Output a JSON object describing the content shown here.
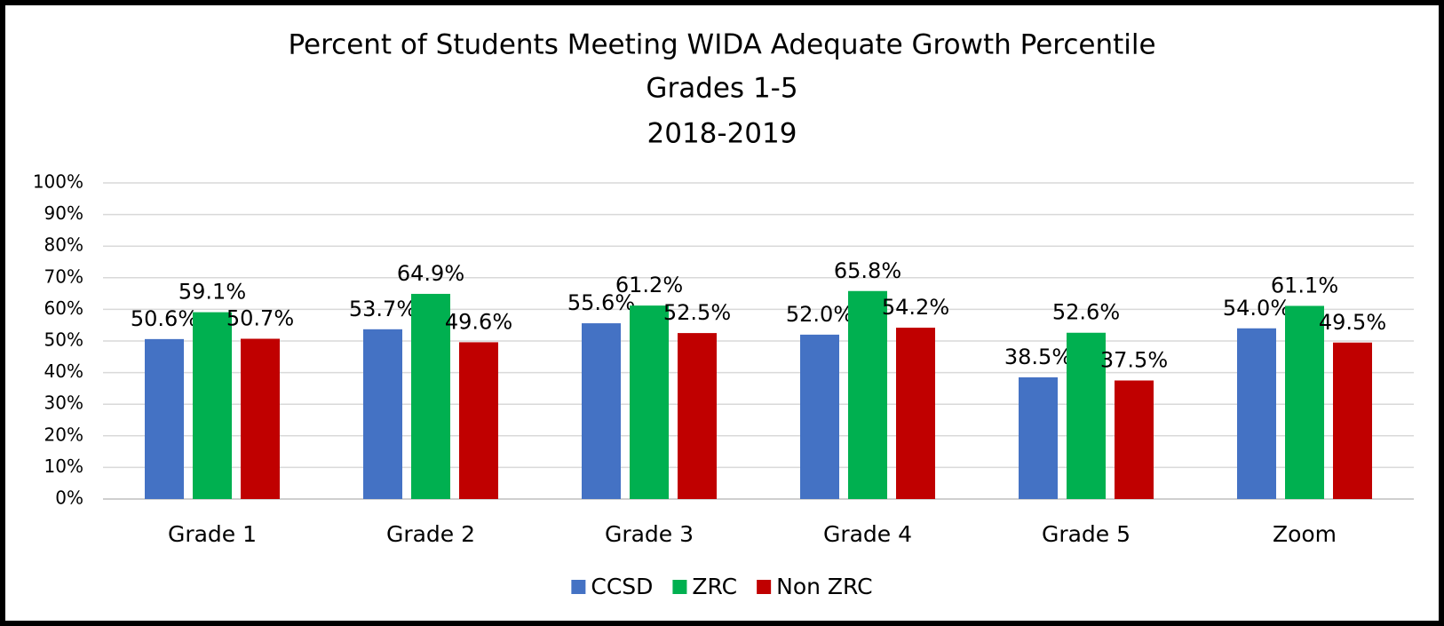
{
  "chart_data": {
    "type": "bar",
    "title": [
      "Percent of Students Meeting WIDA Adequate Growth Percentile",
      "Grades 1-5",
      "2018-2019"
    ],
    "categories": [
      "Grade 1",
      "Grade 2",
      "Grade 3",
      "Grade 4",
      "Grade 5",
      "Zoom"
    ],
    "series": [
      {
        "name": "CCSD",
        "color": "#4472c4",
        "values": [
          50.6,
          53.7,
          55.6,
          52.0,
          38.5,
          54.0
        ],
        "value_labels": [
          "50.6%",
          "53.7%",
          "55.6%",
          "52.0%",
          "38.5%",
          "54.0%"
        ]
      },
      {
        "name": "ZRC",
        "color": "#00b050",
        "values": [
          59.1,
          64.9,
          61.2,
          65.8,
          52.6,
          61.1
        ],
        "value_labels": [
          "59.1%",
          "64.9%",
          "61.2%",
          "65.8%",
          "52.6%",
          "61.1%"
        ]
      },
      {
        "name": "Non ZRC",
        "color": "#c00000",
        "values": [
          50.7,
          49.6,
          52.5,
          54.2,
          37.5,
          49.5
        ],
        "value_labels": [
          "50.7%",
          "49.6%",
          "52.5%",
          "54.2%",
          "37.5%",
          "49.5%"
        ]
      }
    ],
    "ylim": [
      0,
      100
    ],
    "yticks": [
      {
        "value": 0,
        "label": "0%"
      },
      {
        "value": 10,
        "label": "10%"
      },
      {
        "value": 20,
        "label": "20%"
      },
      {
        "value": 30,
        "label": "30%"
      },
      {
        "value": 40,
        "label": "40%"
      },
      {
        "value": 50,
        "label": "50%"
      },
      {
        "value": 60,
        "label": "60%"
      },
      {
        "value": 70,
        "label": "70%"
      },
      {
        "value": 80,
        "label": "80%"
      },
      {
        "value": 90,
        "label": "90%"
      },
      {
        "value": 100,
        "label": "100%"
      }
    ],
    "grid": true,
    "legend": "bottom"
  }
}
